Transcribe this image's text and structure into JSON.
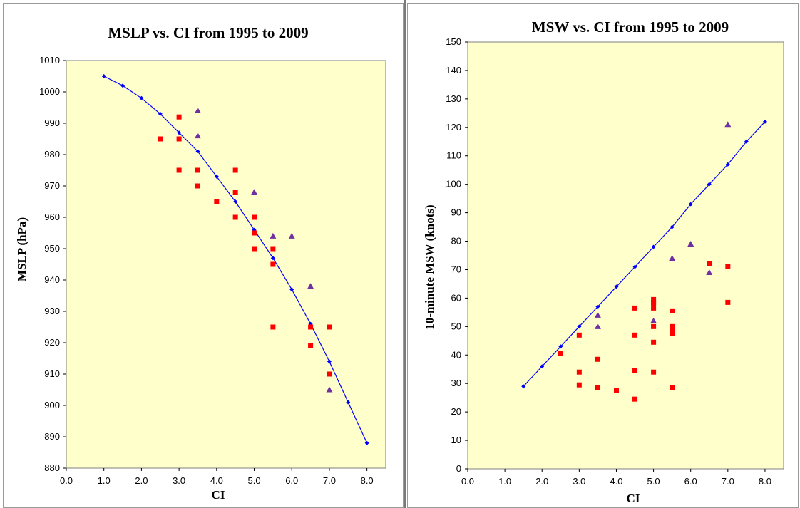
{
  "colors": {
    "plot_bg": "#FFFFCC",
    "fit_line": "#0000FF",
    "square_marker": "#FF0000",
    "triangle_marker": "#7030A0"
  },
  "chart_data": [
    {
      "type": "scatter",
      "title": "MSLP vs. CI from 1995 to 2009",
      "xlabel": "CI",
      "ylabel": "MSLP  (hPa)",
      "xlim": [
        0.0,
        8.5
      ],
      "ylim": [
        880,
        1010
      ],
      "xticks": [
        "0.0",
        "1.0",
        "2.0",
        "3.0",
        "4.0",
        "5.0",
        "6.0",
        "7.0",
        "8.0"
      ],
      "yticks": [
        "880",
        "890",
        "900",
        "910",
        "920",
        "930",
        "940",
        "950",
        "960",
        "970",
        "980",
        "990",
        "1000",
        "1010"
      ],
      "grid": false,
      "series": [
        {
          "marker": "line-diamond",
          "x": [
            1.0,
            1.5,
            2.0,
            2.5,
            3.0,
            3.5,
            4.0,
            4.5,
            5.0,
            5.5,
            6.0,
            6.5,
            7.0,
            7.5,
            8.0
          ],
          "y": [
            1005,
            1002,
            998,
            993,
            987,
            981,
            973,
            965,
            956,
            947,
            937,
            926,
            914,
            901,
            888
          ]
        },
        {
          "marker": "square",
          "x": [
            2.5,
            3.0,
            3.0,
            3.0,
            3.5,
            3.5,
            4.0,
            4.5,
            4.5,
            4.5,
            5.0,
            5.0,
            5.0,
            5.5,
            5.5,
            5.5,
            6.5,
            6.5,
            7.0,
            7.0
          ],
          "y": [
            985,
            992,
            985,
            975,
            975,
            970,
            965,
            975,
            968,
            960,
            960,
            955,
            950,
            950,
            945,
            925,
            925,
            919,
            925,
            910
          ]
        },
        {
          "marker": "triangle",
          "x": [
            3.5,
            3.5,
            5.0,
            5.5,
            6.0,
            6.5,
            7.0
          ],
          "y": [
            994,
            986,
            968,
            954,
            954,
            938,
            905
          ]
        }
      ]
    },
    {
      "type": "scatter",
      "title": "MSW vs. CI  from 1995 to 2009",
      "xlabel": "CI",
      "ylabel": "10-minute MSW (knots)",
      "xlim": [
        0.0,
        8.5
      ],
      "ylim": [
        0,
        150
      ],
      "xticks": [
        "0.0",
        "1.0",
        "2.0",
        "3.0",
        "4.0",
        "5.0",
        "6.0",
        "7.0",
        "8.0"
      ],
      "yticks": [
        "0",
        "10",
        "20",
        "30",
        "40",
        "50",
        "60",
        "70",
        "80",
        "90",
        "100",
        "110",
        "120",
        "130",
        "140",
        "150"
      ],
      "grid": false,
      "series": [
        {
          "marker": "line-diamond",
          "x": [
            1.5,
            2.0,
            2.5,
            3.0,
            3.5,
            4.0,
            4.5,
            5.0,
            5.5,
            6.0,
            6.5,
            7.0,
            7.5,
            8.0
          ],
          "y": [
            29,
            36,
            43,
            50,
            57,
            64,
            71,
            78,
            85,
            93,
            100,
            107,
            115,
            122
          ]
        },
        {
          "marker": "square",
          "x": [
            2.5,
            3.0,
            3.0,
            3.0,
            3.5,
            3.5,
            4.0,
            4.5,
            4.5,
            4.5,
            4.5,
            5.0,
            5.0,
            5.0,
            5.0,
            5.0,
            5.0,
            5.0,
            5.5,
            5.5,
            5.5,
            5.5,
            5.5,
            6.5,
            7.0,
            7.0
          ],
          "y": [
            40.5,
            47,
            34,
            29.5,
            38.5,
            28.5,
            27.5,
            56.5,
            47,
            34.5,
            24.5,
            59.5,
            58.5,
            56.5,
            50,
            44.5,
            34,
            58,
            55.5,
            50,
            47.5,
            28.5,
            49,
            72,
            71,
            58.5
          ]
        },
        {
          "marker": "triangle",
          "x": [
            3.5,
            3.5,
            5.0,
            5.5,
            6.0,
            6.5,
            7.0
          ],
          "y": [
            54,
            50,
            52,
            74,
            79,
            69,
            121
          ]
        }
      ]
    }
  ]
}
